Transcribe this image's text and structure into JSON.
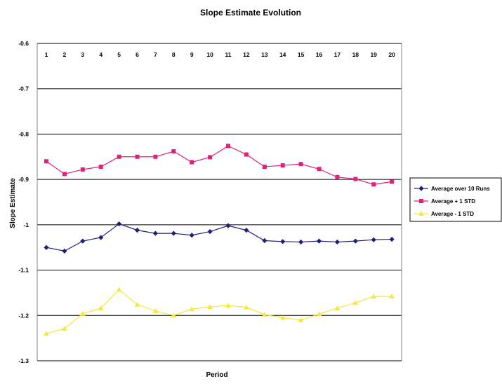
{
  "chart_data": {
    "type": "line",
    "title": "Slope Estimate Evolution",
    "xlabel": "Period",
    "ylabel": "Slope Estimate",
    "categories": [
      "1",
      "2",
      "3",
      "4",
      "5",
      "6",
      "7",
      "8",
      "9",
      "10",
      "11",
      "12",
      "13",
      "14",
      "15",
      "16",
      "17",
      "18",
      "19",
      "20"
    ],
    "ylim": [
      -1.3,
      -0.6
    ],
    "yticks": [
      -0.6,
      -0.7,
      -0.8,
      -0.9,
      -1,
      -1.1,
      -1.2,
      -1.3
    ],
    "ytick_labels": [
      "-0.6",
      "-0.7",
      "-0.8",
      "-0.9",
      "-1",
      "-1.1",
      "-1.2",
      "-1.3"
    ],
    "x_tick_position": "top",
    "grid": "horizontal",
    "legend_position": "right",
    "series": [
      {
        "name": "Average over 10 Runs",
        "color": "#1f1f7a",
        "marker": "diamond",
        "values": [
          -1.05,
          -1.058,
          -1.036,
          -1.028,
          -0.998,
          -1.012,
          -1.019,
          -1.019,
          -1.023,
          -1.015,
          -1.002,
          -1.012,
          -1.035,
          -1.037,
          -1.038,
          -1.036,
          -1.038,
          -1.036,
          -1.033,
          -1.032
        ]
      },
      {
        "name": "Average + 1 STD",
        "color": "#e0207a",
        "marker": "square",
        "values": [
          -0.86,
          -0.888,
          -0.878,
          -0.872,
          -0.85,
          -0.85,
          -0.85,
          -0.838,
          -0.862,
          -0.851,
          -0.826,
          -0.845,
          -0.872,
          -0.869,
          -0.866,
          -0.877,
          -0.895,
          -0.899,
          -0.911,
          -0.905
        ]
      },
      {
        "name": "Average - 1 STD",
        "color": "#f5e83a",
        "marker": "triangle",
        "values": [
          -1.24,
          -1.229,
          -1.196,
          -1.184,
          -1.143,
          -1.176,
          -1.19,
          -1.2,
          -1.186,
          -1.181,
          -1.178,
          -1.182,
          -1.198,
          -1.205,
          -1.21,
          -1.197,
          -1.184,
          -1.172,
          -1.158,
          -1.158
        ]
      }
    ]
  }
}
